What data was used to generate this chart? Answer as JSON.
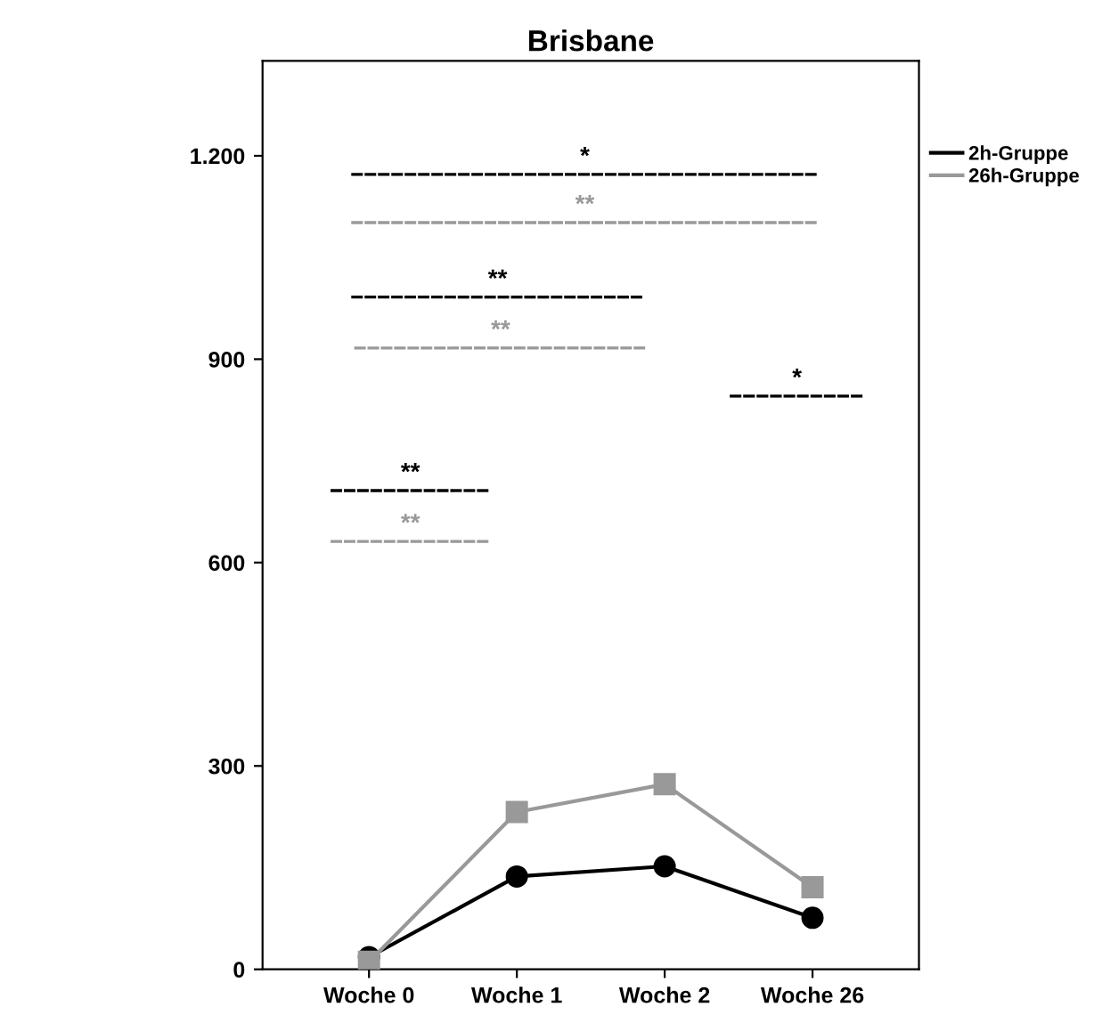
{
  "chart_data": {
    "type": "line",
    "title": "Brisbane",
    "categories": [
      "Woche 0",
      "Woche 1",
      "Woche 2",
      "Woche 26"
    ],
    "series": [
      {
        "name": "2h-Gruppe",
        "color": "#000000",
        "marker": "circle",
        "values": [
          18,
          137,
          152,
          76
        ]
      },
      {
        "name": "26h-Gruppe",
        "color": "#999999",
        "marker": "square",
        "values": [
          11,
          232,
          273,
          121
        ]
      }
    ],
    "ylim": [
      0,
      1340
    ],
    "yticks": [
      0,
      300,
      600,
      900,
      {
        "value": 1200,
        "label": "1.200"
      }
    ],
    "annotations": [
      "*",
      "**",
      "**",
      "**",
      "*",
      "**",
      "**"
    ],
    "grid": false,
    "legend": "top right",
    "line_style": "solid"
  }
}
